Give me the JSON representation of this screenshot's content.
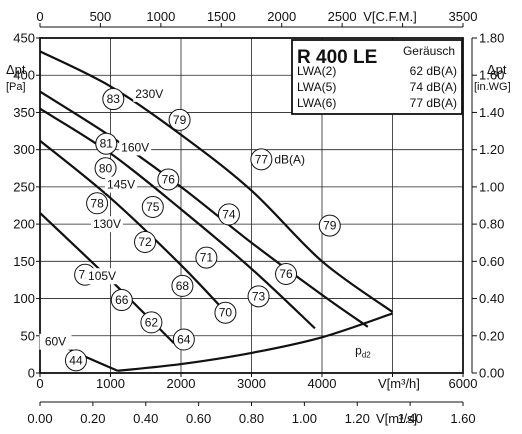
{
  "chart_data": {
    "type": "line",
    "title": "R 400 LE",
    "axes": {
      "x_bottom": {
        "label": "V[m³/h]",
        "range": [
          0,
          6000
        ],
        "ticks": [
          0,
          1000,
          2000,
          3000,
          4000,
          5000,
          6000
        ],
        "tick_labels": [
          "0",
          "1000",
          "2000",
          "3000",
          "4000",
          "",
          "6000"
        ]
      },
      "x_bottom2": {
        "label": "V[m³/s]",
        "range": [
          0,
          1.6
        ],
        "ticks": [
          0,
          0.2,
          0.4,
          0.6,
          0.8,
          1.0,
          1.2,
          1.4,
          1.6
        ],
        "tick_labels": [
          "0.00",
          "0.20",
          "0.40",
          "0.60",
          "0.80",
          "1.00",
          "1.20",
          "1.40",
          "1.60"
        ]
      },
      "x_top": {
        "label": "V[C.F.M.]",
        "range": [
          0,
          3500
        ],
        "ticks": [
          0,
          500,
          1000,
          1500,
          2000,
          2500,
          3000,
          3500
        ],
        "tick_labels": [
          "0",
          "500",
          "1000",
          "1500",
          "2000",
          "2500",
          "",
          "3500"
        ]
      },
      "y_left": {
        "label_lines": [
          "Δpt",
          "[Pa]"
        ],
        "range": [
          0,
          450
        ],
        "ticks": [
          0,
          50,
          100,
          150,
          200,
          250,
          300,
          350,
          400,
          450
        ],
        "tick_labels": [
          "0",
          "50",
          "100",
          "150",
          "200",
          "250",
          "300",
          "350",
          "400",
          "450"
        ]
      },
      "y_right": {
        "label_lines": [
          "Δpt",
          "[in.WG]"
        ],
        "range": [
          0,
          1.8
        ],
        "ticks": [
          0,
          0.2,
          0.4,
          0.6,
          0.8,
          1.0,
          1.2,
          1.4,
          1.6,
          1.8
        ],
        "tick_labels": [
          "0.00",
          "0.20",
          "0.40",
          "0.60",
          "0.80",
          "1.00",
          "1.20",
          "1.40",
          "1.60",
          "1.80"
        ]
      }
    },
    "grid": true,
    "series": [
      {
        "name": "230V",
        "x": [
          0,
          1000,
          2000,
          3000,
          4000,
          5000
        ],
        "y": [
          432,
          385,
          320,
          245,
          150,
          82
        ]
      },
      {
        "name": "160V",
        "x": [
          0,
          1000,
          2000,
          3000,
          4000,
          4650
        ],
        "y": [
          378,
          318,
          250,
          175,
          105,
          62
        ]
      },
      {
        "name": "145V",
        "x": [
          0,
          1000,
          2000,
          3000,
          3900
        ],
        "y": [
          355,
          295,
          220,
          140,
          60
        ]
      },
      {
        "name": "130V",
        "x": [
          0,
          1000,
          2000,
          2700
        ],
        "y": [
          312,
          235,
          145,
          75
        ]
      },
      {
        "name": "105V",
        "x": [
          0,
          1000,
          1900
        ],
        "y": [
          215,
          125,
          40
        ]
      },
      {
        "name": "60V",
        "x": [
          0,
          500,
          1100
        ],
        "y": [
          52,
          28,
          3
        ]
      },
      {
        "name": "pd2",
        "x": [
          1100,
          2000,
          3000,
          4000,
          5000
        ],
        "y": [
          3,
          12,
          27,
          48,
          80
        ]
      }
    ],
    "curve_labels": [
      {
        "text": "230V",
        "x": 1550,
        "y": 375
      },
      {
        "text": "160V",
        "x": 1350,
        "y": 303
      },
      {
        "text": "145V",
        "x": 1150,
        "y": 253
      },
      {
        "text": "130V",
        "x": 950,
        "y": 200
      },
      {
        "text": "105V",
        "x": 880,
        "y": 130
      },
      {
        "text": "60V",
        "x": 220,
        "y": 42
      },
      {
        "text": "pd2",
        "x": 4470,
        "y": 30
      }
    ],
    "noise_markers": [
      {
        "value": "83",
        "x": 1040,
        "y": 368
      },
      {
        "value": "79",
        "x": 1980,
        "y": 340
      },
      {
        "value": "81",
        "x": 940,
        "y": 308
      },
      {
        "value": "77",
        "x": 3140,
        "y": 287,
        "label": "dB(A)"
      },
      {
        "value": "80",
        "x": 930,
        "y": 275
      },
      {
        "value": "76",
        "x": 1820,
        "y": 260
      },
      {
        "value": "78",
        "x": 810,
        "y": 228
      },
      {
        "value": "75",
        "x": 1600,
        "y": 223
      },
      {
        "value": "74",
        "x": 2680,
        "y": 213
      },
      {
        "value": "79",
        "x": 4110,
        "y": 198
      },
      {
        "value": "72",
        "x": 1490,
        "y": 176
      },
      {
        "value": "71",
        "x": 2360,
        "y": 155
      },
      {
        "value": "72",
        "x": 640,
        "y": 132
      },
      {
        "value": "76",
        "x": 3490,
        "y": 133
      },
      {
        "value": "68",
        "x": 2020,
        "y": 117
      },
      {
        "value": "73",
        "x": 3100,
        "y": 103
      },
      {
        "value": "66",
        "x": 1160,
        "y": 98
      },
      {
        "value": "70",
        "x": 2630,
        "y": 81
      },
      {
        "value": "62",
        "x": 1580,
        "y": 68
      },
      {
        "value": "64",
        "x": 2040,
        "y": 45
      },
      {
        "value": "44",
        "x": 510,
        "y": 17
      }
    ],
    "info_box": {
      "title": "R 400 LE",
      "header": "Geräusch",
      "rows": [
        {
          "label": "LWA(2)",
          "value": "62 dB(A)"
        },
        {
          "label": "LWA(5)",
          "value": "74 dB(A)"
        },
        {
          "label": "LWA(6)",
          "value": "77 dB(A)"
        }
      ]
    }
  }
}
